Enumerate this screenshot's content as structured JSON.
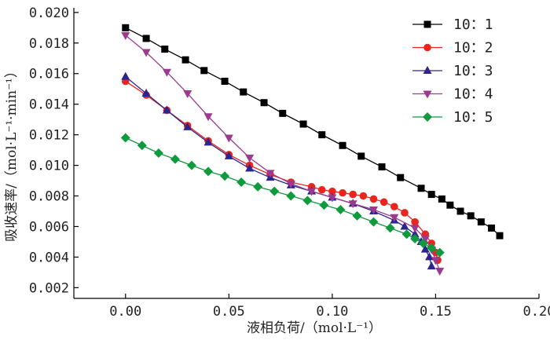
{
  "chart_data": {
    "type": "line",
    "xlabel": "液相负荷/（mol·L⁻¹）",
    "ylabel": "吸收速率/（mol·L⁻¹·min⁻¹）",
    "xlim": [
      -0.025,
      0.2
    ],
    "ylim": [
      0.0013,
      0.0203
    ],
    "xticks": [
      0.0,
      0.05,
      0.1,
      0.15,
      0.2
    ],
    "xtick_labels": [
      "0.00",
      "0.05",
      "0.10",
      "0.15",
      "0.20"
    ],
    "yticks": [
      0.002,
      0.004,
      0.006,
      0.008,
      0.01,
      0.012,
      0.014,
      0.016,
      0.018,
      0.02
    ],
    "ytick_labels": [
      "0.002",
      "0.004",
      "0.006",
      "0.008",
      "0.010",
      "0.012",
      "0.014",
      "0.016",
      "0.018",
      "0.020"
    ],
    "legend_position": "top-right",
    "grid": false,
    "series": [
      {
        "name": "10：1",
        "color": "#000000",
        "marker": "square",
        "x": [
          0.0,
          0.01,
          0.019,
          0.029,
          0.038,
          0.048,
          0.057,
          0.067,
          0.076,
          0.086,
          0.095,
          0.105,
          0.114,
          0.124,
          0.133,
          0.143,
          0.148,
          0.153,
          0.157,
          0.162,
          0.167,
          0.172,
          0.177,
          0.181
        ],
        "y": [
          0.019,
          0.0183,
          0.0176,
          0.0169,
          0.0162,
          0.0155,
          0.0148,
          0.0141,
          0.0134,
          0.0127,
          0.012,
          0.0113,
          0.0106,
          0.0099,
          0.0092,
          0.0085,
          0.0081,
          0.0078,
          0.0074,
          0.007,
          0.0067,
          0.0063,
          0.0059,
          0.0054
        ]
      },
      {
        "name": "10：2",
        "color": "#e8251f",
        "marker": "circle",
        "x": [
          0.0,
          0.01,
          0.02,
          0.03,
          0.04,
          0.05,
          0.06,
          0.07,
          0.08,
          0.09,
          0.095,
          0.1,
          0.105,
          0.11,
          0.115,
          0.12,
          0.125,
          0.13,
          0.135,
          0.14,
          0.145,
          0.148,
          0.15,
          0.151
        ],
        "y": [
          0.0155,
          0.0146,
          0.0136,
          0.0126,
          0.0116,
          0.0107,
          0.01,
          0.0094,
          0.0089,
          0.0086,
          0.0084,
          0.0083,
          0.0082,
          0.0081,
          0.008,
          0.0078,
          0.0076,
          0.0073,
          0.0069,
          0.0063,
          0.0055,
          0.0049,
          0.0043,
          0.0038
        ]
      },
      {
        "name": "10：3",
        "color": "#2d2490",
        "marker": "triangle-up",
        "x": [
          0.0,
          0.01,
          0.02,
          0.03,
          0.04,
          0.05,
          0.06,
          0.07,
          0.08,
          0.09,
          0.1,
          0.11,
          0.12,
          0.13,
          0.135,
          0.14,
          0.143,
          0.145,
          0.147,
          0.148
        ],
        "y": [
          0.0158,
          0.0147,
          0.0136,
          0.0125,
          0.0115,
          0.0106,
          0.0098,
          0.0092,
          0.0087,
          0.0083,
          0.0079,
          0.0075,
          0.007,
          0.0064,
          0.006,
          0.0055,
          0.005,
          0.0045,
          0.004,
          0.0034
        ]
      },
      {
        "name": "10：4",
        "color": "#9b3a8f",
        "marker": "triangle-down",
        "x": [
          0.0,
          0.01,
          0.02,
          0.03,
          0.04,
          0.05,
          0.06,
          0.07,
          0.08,
          0.09,
          0.1,
          0.11,
          0.12,
          0.13,
          0.14,
          0.145,
          0.148,
          0.15,
          0.152
        ],
        "y": [
          0.0185,
          0.0174,
          0.0161,
          0.0147,
          0.0132,
          0.0118,
          0.0105,
          0.0095,
          0.0088,
          0.0083,
          0.0079,
          0.0075,
          0.0071,
          0.0066,
          0.0059,
          0.0052,
          0.0045,
          0.0038,
          0.0031
        ]
      },
      {
        "name": "10：5",
        "color": "#0f9a3e",
        "marker": "diamond",
        "x": [
          0.0,
          0.008,
          0.016,
          0.024,
          0.032,
          0.04,
          0.048,
          0.056,
          0.064,
          0.072,
          0.08,
          0.088,
          0.096,
          0.104,
          0.112,
          0.12,
          0.128,
          0.136,
          0.14,
          0.144,
          0.148,
          0.152
        ],
        "y": [
          0.0118,
          0.0113,
          0.0108,
          0.0104,
          0.01,
          0.0096,
          0.0093,
          0.0089,
          0.0086,
          0.0083,
          0.008,
          0.0077,
          0.0074,
          0.0071,
          0.0067,
          0.0063,
          0.0059,
          0.0055,
          0.0052,
          0.0049,
          0.0046,
          0.0043
        ]
      }
    ]
  }
}
